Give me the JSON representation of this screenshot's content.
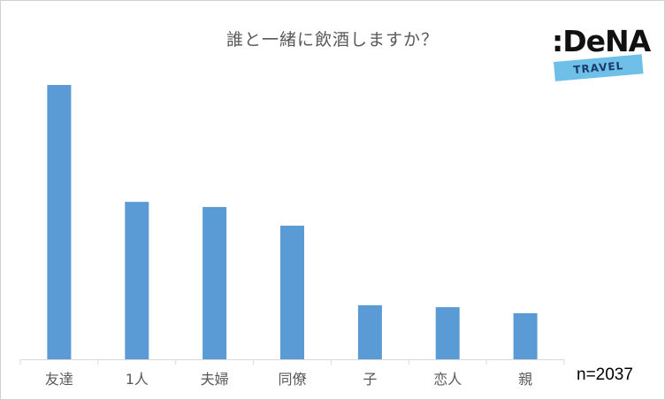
{
  "chart_data": {
    "type": "bar",
    "title": "誰と一緒に飲酒しますか？",
    "categories": [
      "友達",
      "1人",
      "夫婦",
      "同僚",
      "子",
      "恋人",
      "親"
    ],
    "values": [
      100,
      57.4,
      55.5,
      48.7,
      19.7,
      19.0,
      16.8
    ],
    "ylim": [
      0,
      100
    ],
    "grid": false,
    "legend": "none",
    "bar_color": "#5b9bd5",
    "note": "n=2037"
  },
  "logo": {
    "brand": ":DeNA",
    "tagline": "TRAVEL",
    "tag_color": "#6ec0e8"
  }
}
